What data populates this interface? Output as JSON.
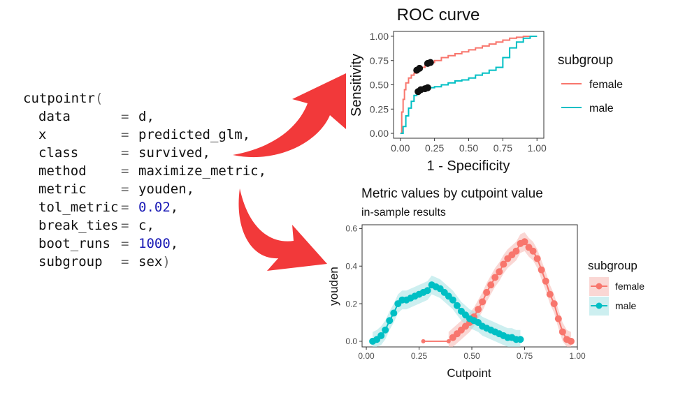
{
  "code": {
    "lines": [
      {
        "arg": "cutpointr(",
        "op": "",
        "val": "",
        "close": ""
      },
      {
        "arg": "data",
        "op": "=",
        "val": "d,",
        "close": ""
      },
      {
        "arg": "x",
        "op": "=",
        "val": "predicted_glm,",
        "close": ""
      },
      {
        "arg": "class",
        "op": "=",
        "val": "survived,",
        "close": ""
      },
      {
        "arg": "method",
        "op": "=",
        "val": "maximize_metric,",
        "close": ""
      },
      {
        "arg": "metric",
        "op": "=",
        "val": "youden,",
        "close": ""
      },
      {
        "arg": "tol_metric",
        "op": "=",
        "val": "0.02",
        "close": ",",
        "numeric": true
      },
      {
        "arg": "break_ties",
        "op": "=",
        "val": "c,",
        "close": ""
      },
      {
        "arg": "boot_runs",
        "op": "=",
        "val": "1000",
        "close": ",",
        "numeric": true
      },
      {
        "arg": "subgroup",
        "op": "=",
        "val": "sex",
        "close": ")"
      }
    ]
  },
  "colors": {
    "female": "#F8766D",
    "male": "#00BFC4",
    "arrow": "#f2393a",
    "female_band": "#f6b6b0",
    "male_band": "#a4e1e4"
  },
  "chart_data": [
    {
      "type": "line",
      "title": "ROC curve",
      "xlabel": "1 - Specificity",
      "ylabel": "Sensitivity",
      "xlim": [
        0,
        1
      ],
      "ylim": [
        0,
        1
      ],
      "xticks": [
        "0.00",
        "0.25",
        "0.50",
        "0.75",
        "1.00"
      ],
      "yticks": [
        "0.00",
        "0.25",
        "0.50",
        "0.75",
        "1.00"
      ],
      "legend_title": "subgroup",
      "legend_position": "right",
      "grid": false,
      "series": [
        {
          "name": "female",
          "x": [
            0,
            0.01,
            0.02,
            0.03,
            0.04,
            0.06,
            0.08,
            0.1,
            0.12,
            0.15,
            0.18,
            0.21,
            0.25,
            0.3,
            0.35,
            0.4,
            0.45,
            0.5,
            0.55,
            0.6,
            0.65,
            0.7,
            0.75,
            0.8,
            0.85,
            0.9,
            0.95,
            1
          ],
          "y": [
            0,
            0.22,
            0.35,
            0.45,
            0.52,
            0.57,
            0.6,
            0.62,
            0.65,
            0.68,
            0.7,
            0.73,
            0.75,
            0.78,
            0.8,
            0.82,
            0.84,
            0.86,
            0.88,
            0.9,
            0.92,
            0.94,
            0.96,
            0.98,
            0.99,
            1,
            1,
            1
          ]
        },
        {
          "name": "male",
          "x": [
            0,
            0.02,
            0.04,
            0.06,
            0.08,
            0.1,
            0.12,
            0.15,
            0.18,
            0.2,
            0.25,
            0.3,
            0.35,
            0.4,
            0.45,
            0.5,
            0.55,
            0.6,
            0.65,
            0.7,
            0.75,
            0.8,
            0.85,
            0.9,
            0.95,
            1
          ],
          "y": [
            0,
            0.07,
            0.18,
            0.26,
            0.33,
            0.39,
            0.43,
            0.45,
            0.46,
            0.47,
            0.48,
            0.5,
            0.52,
            0.54,
            0.55,
            0.57,
            0.6,
            0.62,
            0.65,
            0.68,
            0.78,
            0.88,
            0.94,
            0.98,
            1,
            1
          ]
        }
      ],
      "cutpoints": [
        {
          "group": "female",
          "points": [
            [
              0.12,
              0.65
            ],
            [
              0.14,
              0.67
            ],
            [
              0.2,
              0.72
            ],
            [
              0.22,
              0.73
            ]
          ]
        },
        {
          "group": "male",
          "points": [
            [
              0.13,
              0.43
            ],
            [
              0.15,
              0.45
            ],
            [
              0.18,
              0.46
            ],
            [
              0.2,
              0.47
            ]
          ]
        }
      ]
    },
    {
      "type": "line",
      "title": "Metric values by cutpoint value",
      "subtitle": "in-sample results",
      "xlabel": "Cutpoint",
      "ylabel": "youden",
      "xlim": [
        -0.02,
        1
      ],
      "ylim": [
        -0.03,
        0.62
      ],
      "xticks": [
        "0.00",
        "0.25",
        "0.50",
        "0.75",
        "1.00"
      ],
      "yticks": [
        "0.0",
        "0.2",
        "0.4",
        "0.6"
      ],
      "legend_title": "subgroup",
      "legend_position": "right",
      "grid": false,
      "series": [
        {
          "name": "female",
          "x": [
            0.27,
            0.39,
            0.41,
            0.43,
            0.45,
            0.47,
            0.49,
            0.51,
            0.53,
            0.55,
            0.57,
            0.59,
            0.61,
            0.63,
            0.65,
            0.67,
            0.69,
            0.71,
            0.73,
            0.75,
            0.77,
            0.79,
            0.81,
            0.83,
            0.85,
            0.87,
            0.89,
            0.91,
            0.93,
            0.95,
            0.97
          ],
          "y": [
            0,
            0,
            0.02,
            0.04,
            0.06,
            0.08,
            0.1,
            0.13,
            0.17,
            0.21,
            0.26,
            0.3,
            0.34,
            0.37,
            0.41,
            0.44,
            0.46,
            0.48,
            0.52,
            0.53,
            0.5,
            0.48,
            0.44,
            0.38,
            0.32,
            0.25,
            0.2,
            0.12,
            0.05,
            0.01,
            0
          ]
        },
        {
          "name": "male",
          "x": [
            0.03,
            0.05,
            0.07,
            0.09,
            0.11,
            0.13,
            0.15,
            0.17,
            0.19,
            0.21,
            0.23,
            0.25,
            0.27,
            0.29,
            0.31,
            0.33,
            0.35,
            0.37,
            0.39,
            0.41,
            0.43,
            0.45,
            0.47,
            0.49,
            0.51,
            0.53,
            0.55,
            0.57,
            0.59,
            0.61,
            0.63,
            0.65,
            0.67,
            0.69,
            0.71,
            0.73
          ],
          "y": [
            0,
            0.01,
            0.03,
            0.06,
            0.11,
            0.15,
            0.2,
            0.22,
            0.22,
            0.23,
            0.24,
            0.25,
            0.26,
            0.27,
            0.3,
            0.29,
            0.28,
            0.26,
            0.24,
            0.22,
            0.19,
            0.16,
            0.14,
            0.12,
            0.11,
            0.1,
            0.08,
            0.07,
            0.06,
            0.05,
            0.04,
            0.03,
            0.02,
            0.02,
            0.01,
            0.01
          ]
        }
      ],
      "bands": [
        {
          "group": "female",
          "width": 0.05
        },
        {
          "group": "male",
          "width": 0.05
        }
      ]
    }
  ]
}
